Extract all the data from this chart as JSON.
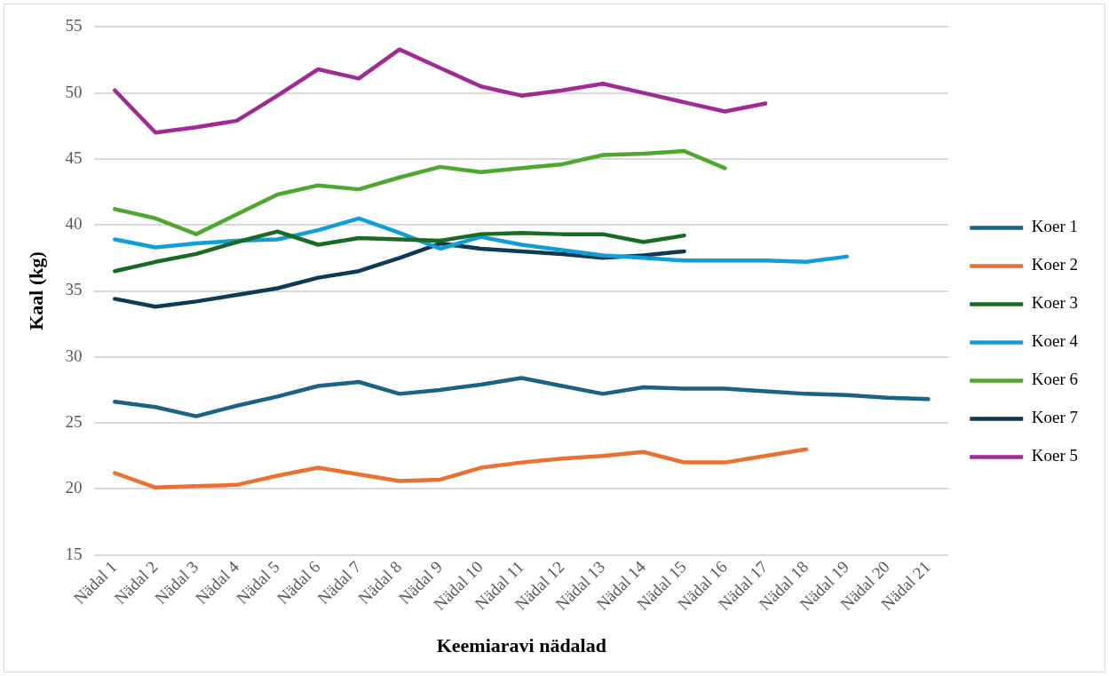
{
  "chart_data": {
    "type": "line",
    "xlabel": "Keemiaravi nädalad",
    "ylabel": "Kaal (kg)",
    "categories": [
      "Nädal 1",
      "Nädal 2",
      "Nädal 3",
      "Nädal 4",
      "Nädal 5",
      "Nädal 6",
      "Nädal 7",
      "Nädal 8",
      "Nädal 9",
      "Nädal 10",
      "Nädal 11",
      "Nädal 12",
      "Nädal 13",
      "Nädal 14",
      "Nädal 15",
      "Nädal 16",
      "Nädal 17",
      "Nädal 18",
      "Nädal 19",
      "Nädal 20",
      "Nädal 21"
    ],
    "series": [
      {
        "name": "Koer 1",
        "color": "#1a6384",
        "values": [
          26.6,
          26.2,
          25.5,
          26.3,
          27.0,
          27.8,
          28.1,
          27.2,
          27.5,
          27.9,
          28.4,
          27.8,
          27.2,
          27.7,
          27.6,
          27.6,
          27.4,
          27.2,
          27.1,
          26.9,
          26.8
        ]
      },
      {
        "name": "Koer 2",
        "color": "#e97132",
        "values": [
          21.2,
          20.1,
          20.2,
          20.3,
          21.0,
          21.6,
          21.1,
          20.6,
          20.7,
          21.6,
          22.0,
          22.3,
          22.5,
          22.8,
          22.0,
          22.0,
          22.5,
          23.0,
          null,
          null,
          null
        ]
      },
      {
        "name": "Koer 3",
        "color": "#196b24",
        "values": [
          36.5,
          37.2,
          37.8,
          38.7,
          39.5,
          38.5,
          39.0,
          38.9,
          38.8,
          39.3,
          39.4,
          39.3,
          39.3,
          38.7,
          39.2,
          null,
          null,
          null,
          null,
          null,
          null
        ]
      },
      {
        "name": "Koer 4",
        "color": "#0f9ed5",
        "values": [
          38.9,
          38.3,
          38.6,
          38.8,
          38.9,
          39.6,
          40.5,
          39.4,
          38.2,
          39.1,
          38.5,
          38.1,
          37.7,
          37.5,
          37.3,
          37.3,
          37.3,
          37.2,
          37.6,
          null,
          null
        ]
      },
      {
        "name": "Koer 6",
        "color": "#4ea72e",
        "values": [
          41.2,
          40.5,
          39.3,
          40.8,
          42.3,
          43.0,
          42.7,
          43.6,
          44.4,
          44.0,
          44.3,
          44.6,
          45.3,
          45.4,
          45.6,
          44.3,
          null,
          null,
          null,
          null,
          null
        ]
      },
      {
        "name": "Koer 7",
        "color": "#0e3a53",
        "values": [
          34.4,
          33.8,
          34.2,
          34.7,
          35.2,
          36.0,
          36.5,
          37.5,
          38.6,
          38.2,
          38.0,
          37.8,
          37.5,
          37.7,
          38.0,
          null,
          null,
          null,
          null,
          null,
          null
        ]
      },
      {
        "name": "Koer 5",
        "color": "#a02b93",
        "values": [
          50.2,
          47.0,
          47.4,
          47.9,
          49.8,
          51.8,
          51.1,
          53.3,
          51.9,
          50.5,
          49.8,
          50.2,
          50.7,
          50.0,
          49.3,
          48.6,
          49.2,
          null,
          null,
          null,
          null
        ]
      }
    ],
    "ylim": [
      15,
      55
    ],
    "yticks": [
      15,
      20,
      25,
      30,
      35,
      40,
      45,
      50,
      55
    ],
    "grid": "y",
    "legend": "right",
    "marker": "none",
    "line_style": "solid"
  }
}
